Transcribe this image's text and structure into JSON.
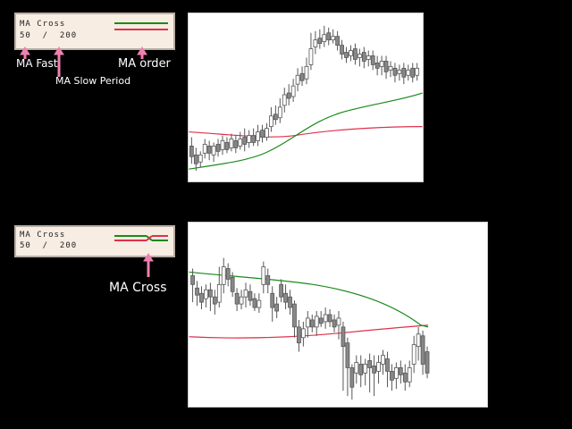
{
  "indicator": {
    "name": "MA Cross",
    "periods": "50  /  200",
    "fast_color": "#1a8a1a",
    "slow_color": "#e0304a"
  },
  "annotations": {
    "ma_fast": "MA Fast",
    "ma_order": "MA order",
    "ma_slow_period": "MA Slow Period",
    "ma_cross": "MA Cross",
    "arrow_color": "#f080b0"
  },
  "charts": [
    {
      "name": "chart-top",
      "fast_ma": "rising above slow",
      "slow_ma": "flat"
    },
    {
      "name": "chart-bottom",
      "fast_ma": "falling to cross slow",
      "slow_ma": "slightly rising"
    }
  ]
}
